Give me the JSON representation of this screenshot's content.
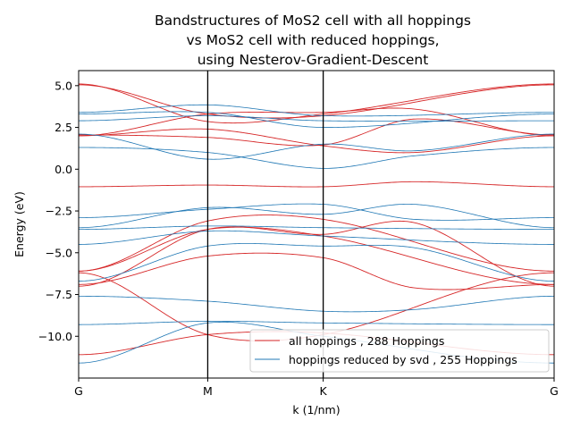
{
  "chart_data": {
    "type": "line",
    "title_lines": [
      "Bandstructures of MoS2 cell with all hoppings",
      "vs MoS2 cell with reduced hoppings,",
      "using Nesterov-Gradient-Descent"
    ],
    "xlabel": "k (1/nm)",
    "ylabel": "Energy (eV)",
    "x_ticks": [
      {
        "label": "G",
        "x": 0
      },
      {
        "label": "M",
        "x": 1
      },
      {
        "label": "K",
        "x": 1.8944
      },
      {
        "label": "G",
        "x": 3.6833
      }
    ],
    "xlim": [
      0,
      3.6833
    ],
    "ylim": [
      -12.5,
      5.9
    ],
    "y_ticks": [
      5.0,
      2.5,
      0.0,
      -2.5,
      -5.0,
      -7.5,
      -10.0
    ],
    "y_tick_labels": [
      "5.0",
      "2.5",
      "0.0",
      "−2.5",
      "−5.0",
      "−7.5",
      "−10.0"
    ],
    "legend": {
      "placement": "lower right",
      "entries": [
        {
          "label": "all hoppings , 288 Hoppings",
          "color": "#d62728"
        },
        {
          "label": "hoppings reduced by svd , 255 Hoppings",
          "color": "#1f77b4"
        }
      ]
    },
    "series": [
      {
        "name": "all hoppings , 288 Hoppings",
        "color": "#d62728",
        "bands": [
          {
            "x": [
              0,
              1,
              1.8944,
              3.6833
            ],
            "y": [
              5.1,
              2.85,
              3.3,
              5.1
            ]
          },
          {
            "x": [
              0,
              1,
              1.8944,
              3.6833
            ],
            "y": [
              5.05,
              3.3,
              3.2,
              5.05
            ]
          },
          {
            "x": [
              0,
              1,
              1.8944,
              2.6,
              3.6833
            ],
            "y": [
              2.05,
              1.9,
              1.45,
              3.0,
              2.05
            ]
          },
          {
            "x": [
              0,
              1,
              1.8944,
              2.6,
              3.6833
            ],
            "y": [
              2.0,
              2.4,
              1.4,
              1.0,
              2.0
            ]
          },
          {
            "x": [
              0,
              1,
              1.8944,
              2.6,
              3.6833
            ],
            "y": [
              2.0,
              3.3,
              3.4,
              3.6,
              2.0
            ]
          },
          {
            "x": [
              0,
              1,
              1.8944,
              2.6,
              3.6833
            ],
            "y": [
              -1.05,
              -0.95,
              -1.05,
              -0.75,
              -1.05
            ]
          },
          {
            "x": [
              0,
              1,
              1.8944,
              3.6833
            ],
            "y": [
              -6.1,
              -3.1,
              -3.0,
              -6.1
            ]
          },
          {
            "x": [
              0,
              1,
              1.8944,
              3.6833
            ],
            "y": [
              -6.1,
              -3.6,
              -4.0,
              -6.9
            ]
          },
          {
            "x": [
              0,
              1,
              1.8944,
              2.6,
              3.6833
            ],
            "y": [
              -6.9,
              -5.2,
              -5.3,
              -7.1,
              -6.9
            ]
          },
          {
            "x": [
              0,
              1,
              1.8944,
              2.6,
              3.6833
            ],
            "y": [
              -7.0,
              -3.6,
              -3.9,
              -3.2,
              -7.0
            ]
          },
          {
            "x": [
              0,
              1,
              1.8944,
              3.6833
            ],
            "y": [
              -6.2,
              -9.9,
              -9.9,
              -6.2
            ]
          },
          {
            "x": [
              0,
              1,
              1.8944,
              3.6833
            ],
            "y": [
              -11.1,
              -9.9,
              -9.8,
              -11.1
            ]
          }
        ]
      },
      {
        "name": "hoppings reduced by svd , 255 Hoppings",
        "color": "#1f77b4",
        "bands": [
          {
            "x": [
              0,
              1,
              1.8944,
              3.6833
            ],
            "y": [
              3.4,
              3.85,
              3.2,
              3.4
            ]
          },
          {
            "x": [
              0,
              1,
              1.8944,
              3.6833
            ],
            "y": [
              3.3,
              3.4,
              2.5,
              3.3
            ]
          },
          {
            "x": [
              0,
              1,
              1.8944,
              3.6833
            ],
            "y": [
              2.9,
              3.2,
              2.9,
              2.9
            ]
          },
          {
            "x": [
              0,
              1,
              1.8944,
              2.6,
              3.6833
            ],
            "y": [
              2.1,
              0.6,
              1.5,
              1.1,
              2.1
            ]
          },
          {
            "x": [
              0,
              1,
              1.8944,
              2.6,
              3.6833
            ],
            "y": [
              1.3,
              1.0,
              0.05,
              0.8,
              1.3
            ]
          },
          {
            "x": [
              0,
              1,
              1.8944,
              2.6,
              3.6833
            ],
            "y": [
              -2.9,
              -2.4,
              -2.1,
              -3.0,
              -2.9
            ]
          },
          {
            "x": [
              0,
              1,
              1.8944,
              2.6,
              3.6833
            ],
            "y": [
              -3.5,
              -2.3,
              -2.7,
              -2.1,
              -3.5
            ]
          },
          {
            "x": [
              0,
              1,
              1.8944,
              3.6833
            ],
            "y": [
              -3.6,
              -3.4,
              -3.5,
              -3.6
            ]
          },
          {
            "x": [
              0,
              1,
              1.8944,
              3.6833
            ],
            "y": [
              -4.5,
              -3.7,
              -4.0,
              -4.5
            ]
          },
          {
            "x": [
              0,
              1,
              1.8944,
              2.6,
              3.6833
            ],
            "y": [
              -6.7,
              -4.6,
              -4.6,
              -4.7,
              -6.7
            ]
          },
          {
            "x": [
              0,
              1,
              1.8944,
              2.6,
              3.6833
            ],
            "y": [
              -7.6,
              -7.9,
              -8.5,
              -8.4,
              -7.6
            ]
          },
          {
            "x": [
              0,
              1,
              1.8944,
              3.6833
            ],
            "y": [
              -9.3,
              -9.1,
              -9.2,
              -9.3
            ]
          },
          {
            "x": [
              0,
              1,
              1.8944,
              3.6833
            ],
            "y": [
              -11.6,
              -9.2,
              -10.0,
              -11.6
            ]
          }
        ]
      }
    ]
  }
}
